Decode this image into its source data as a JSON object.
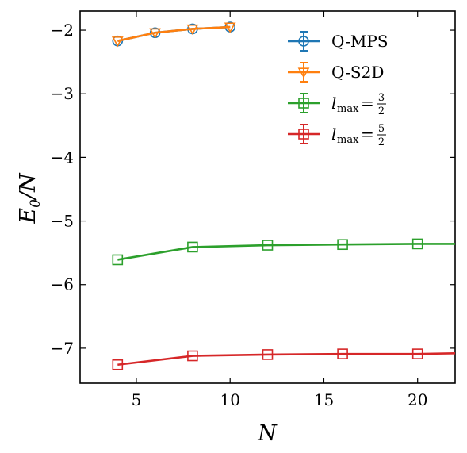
{
  "chart_data": {
    "type": "line",
    "xlabel": "N",
    "ylabel": "E_0/N",
    "xlim": [
      2,
      22
    ],
    "ylim": [
      -7.55,
      -1.7
    ],
    "xticks": [
      "5",
      "10",
      "15",
      "20"
    ],
    "yticks": [
      "−2",
      "−3",
      "−4",
      "−5",
      "−6",
      "−7"
    ],
    "legend_position": "top-right",
    "series": [
      {
        "name": "Q-MPS",
        "color": "#1f77b4",
        "marker": "circle",
        "x": [
          4,
          6,
          8,
          10
        ],
        "y": [
          -2.17,
          -2.04,
          -1.98,
          -1.95
        ]
      },
      {
        "name": "Q-S2D",
        "color": "#ff7f0e",
        "marker": "triangle-down",
        "x": [
          4,
          6,
          8,
          10
        ],
        "y": [
          -2.17,
          -2.04,
          -1.98,
          -1.95
        ]
      },
      {
        "name": "l_max = 3/2",
        "color": "#2ca02c",
        "marker": "square",
        "x": [
          4,
          8,
          12,
          16,
          20,
          22
        ],
        "y": [
          -5.61,
          -5.41,
          -5.38,
          -5.37,
          -5.36,
          -5.36
        ]
      },
      {
        "name": "l_max = 5/2",
        "color": "#d62728",
        "marker": "square",
        "x": [
          4,
          8,
          12,
          16,
          20,
          22
        ],
        "y": [
          -7.26,
          -7.12,
          -7.1,
          -7.09,
          -7.09,
          -7.08
        ]
      }
    ],
    "legend": {
      "entries": [
        {
          "label": "Q-MPS"
        },
        {
          "label": "Q-S2D"
        },
        {
          "label_main": "l",
          "label_sub": "max",
          "label_eq": "=",
          "frac_num": "3",
          "frac_den": "2"
        },
        {
          "label_main": "l",
          "label_sub": "max",
          "label_eq": "=",
          "frac_num": "5",
          "frac_den": "2"
        }
      ]
    }
  }
}
